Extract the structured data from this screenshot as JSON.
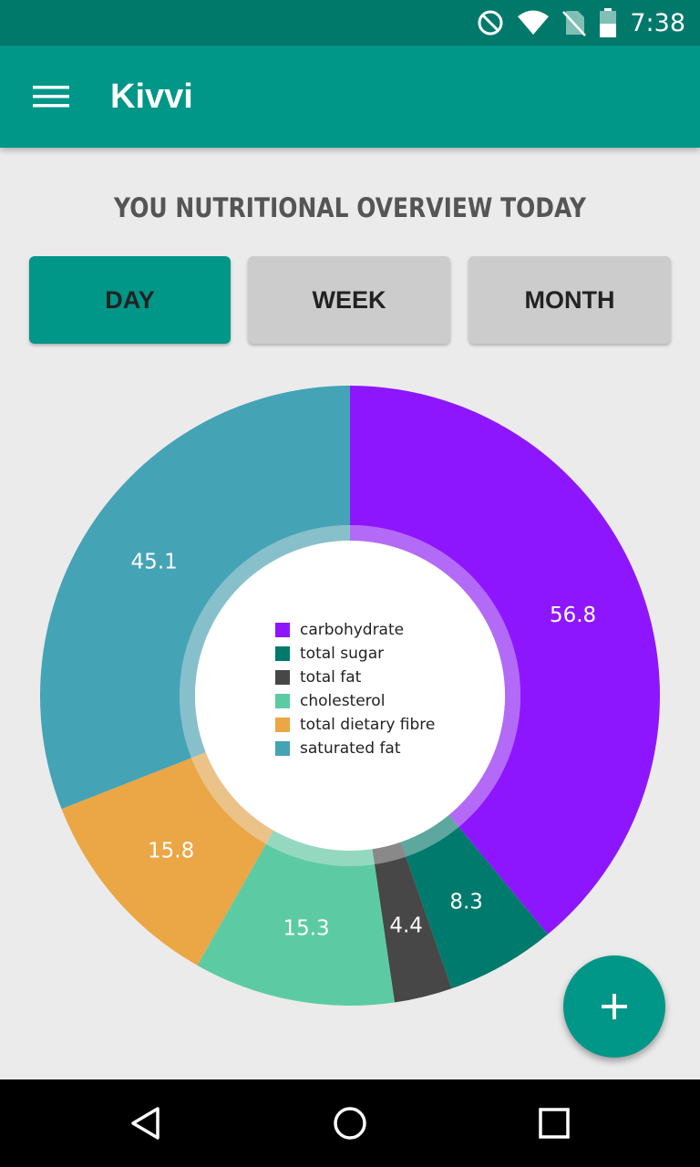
{
  "status_bar": {
    "time": "7:38",
    "icons": [
      "do-not-disturb-icon",
      "wifi-icon",
      "no-sim-icon",
      "battery-icon"
    ]
  },
  "app_bar": {
    "title": "Kivvi",
    "menu_icon": "hamburger-menu-icon"
  },
  "page": {
    "heading": "YOU NUTRITIONAL OVERVIEW TODAY"
  },
  "tabs": [
    {
      "label": "DAY",
      "active": true
    },
    {
      "label": "WEEK",
      "active": false
    },
    {
      "label": "MONTH",
      "active": false
    }
  ],
  "chart_data": {
    "type": "pie",
    "style": "donut",
    "legend_position": "center",
    "slices": [
      {
        "name": "carbohydrate",
        "value": 56.8,
        "label": "56.8",
        "color": "#8e16ff"
      },
      {
        "name": "total sugar",
        "value": 8.3,
        "label": "8.3",
        "color": "#007a6c"
      },
      {
        "name": "total fat",
        "value": 4.4,
        "label": "4.4",
        "color": "#474747"
      },
      {
        "name": "cholesterol",
        "value": 15.3,
        "label": "15.3",
        "color": "#5ccba3"
      },
      {
        "name": "total dietary fibre",
        "value": 15.8,
        "label": "15.8",
        "color": "#eba645"
      },
      {
        "name": "saturated fat",
        "value": 45.1,
        "label": "45.1",
        "color": "#45a3b6"
      }
    ]
  },
  "fab": {
    "icon": "plus-icon"
  },
  "nav_bar": {
    "icons": [
      "back-triangle-icon",
      "home-circle-icon",
      "recents-square-icon"
    ]
  },
  "colors": {
    "primary": "#009688",
    "primary_dark": "#00796b",
    "background": "#ebebeb",
    "tab_inactive": "#cccccc"
  }
}
